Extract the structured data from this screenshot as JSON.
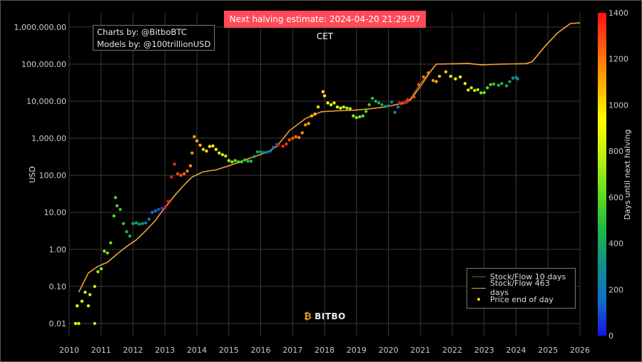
{
  "banner": "Next halving estimate: 2024-04-20 21:29:07 CET",
  "credits": {
    "line1": "Charts by: @BitboBTC",
    "line2": "Models by: @100trillionUSD"
  },
  "logo_text": "BITBO",
  "colors": {
    "background": "#000000",
    "grid": "#3a3a3a",
    "sf10": "#8a5a1e",
    "sf463": "#f0a030",
    "price_dot": "#ffd400",
    "banner": "#ff4a5a"
  },
  "colorbar": {
    "label": "Days until next halving",
    "ticks": [
      0,
      200,
      400,
      600,
      800,
      1000,
      1200,
      1400
    ],
    "range": [
      0,
      1400
    ],
    "stops": [
      "#1a10e8",
      "#1070c8",
      "#109088",
      "#22b840",
      "#60e020",
      "#c0f010",
      "#ffff00",
      "#ffb000",
      "#ff6010",
      "#ff1010"
    ]
  },
  "chart_data": {
    "type": "scatter",
    "title": "",
    "ylabel": "USD",
    "xlabel": "",
    "yscale": "log",
    "xlim": [
      2010,
      2026
    ],
    "ylim": [
      0.01,
      1000000
    ],
    "x_ticks": [
      2010,
      2011,
      2012,
      2013,
      2014,
      2015,
      2016,
      2017,
      2018,
      2019,
      2020,
      2021,
      2022,
      2023,
      2024,
      2025,
      2026
    ],
    "y_ticks": [
      {
        "value": 0.01,
        "label": "0.01"
      },
      {
        "value": 0.1,
        "label": "0.10"
      },
      {
        "value": 1,
        "label": "1.00"
      },
      {
        "value": 10,
        "label": "10.00"
      },
      {
        "value": 100,
        "label": "100.00"
      },
      {
        "value": 1000,
        "label": "1,000.00"
      },
      {
        "value": 10000,
        "label": "10,000.00"
      },
      {
        "value": 100000,
        "label": "100,000.00"
      },
      {
        "value": 1000000,
        "label": "1,000,000.00"
      }
    ],
    "grid": true,
    "legend_position": "bottom-right",
    "legend": [
      "Stock/Flow 10 days",
      "Stock/Flow 463 days",
      "Price end of day"
    ],
    "series": [
      {
        "name": "Stock/Flow 10 days",
        "kind": "line",
        "points": [
          [
            2020.35,
            8000
          ],
          [
            2020.6,
            9000
          ],
          [
            2021.0,
            30000
          ],
          [
            2021.5,
            100000
          ],
          [
            2022.0,
            102000
          ],
          [
            2022.5,
            104000
          ],
          [
            2022.9,
            95000
          ],
          [
            2023.5,
            100000
          ],
          [
            2024.3,
            103000
          ],
          [
            2024.5,
            115000
          ],
          [
            2024.9,
            300000
          ],
          [
            2025.3,
            700000
          ],
          [
            2025.7,
            1250000
          ],
          [
            2026.0,
            1300000
          ]
        ]
      },
      {
        "name": "Stock/Flow 463 days",
        "kind": "line",
        "points": [
          [
            2010.3,
            0.07
          ],
          [
            2010.6,
            0.23
          ],
          [
            2010.9,
            0.35
          ],
          [
            2011.2,
            0.45
          ],
          [
            2011.5,
            0.75
          ],
          [
            2011.8,
            1.2
          ],
          [
            2012.1,
            1.8
          ],
          [
            2012.4,
            3.2
          ],
          [
            2012.7,
            6.0
          ],
          [
            2012.9,
            10.5
          ],
          [
            2013.3,
            28
          ],
          [
            2013.6,
            55
          ],
          [
            2013.85,
            90
          ],
          [
            2014.2,
            125
          ],
          [
            2014.6,
            140
          ],
          [
            2015.0,
            180
          ],
          [
            2015.4,
            240
          ],
          [
            2015.8,
            320
          ],
          [
            2016.2,
            420
          ],
          [
            2016.5,
            600
          ],
          [
            2016.9,
            1600
          ],
          [
            2017.4,
            3400
          ],
          [
            2017.9,
            5200
          ],
          [
            2018.4,
            5500
          ],
          [
            2018.9,
            5700
          ],
          [
            2019.4,
            6200
          ],
          [
            2019.9,
            7000
          ],
          [
            2020.35,
            8500
          ],
          [
            2020.7,
            11000
          ],
          [
            2021.0,
            25000
          ],
          [
            2021.3,
            60000
          ],
          [
            2021.5,
            100000
          ],
          [
            2022.0,
            102000
          ],
          [
            2022.5,
            104000
          ],
          [
            2022.9,
            96000
          ],
          [
            2023.5,
            100000
          ],
          [
            2024.3,
            103000
          ],
          [
            2024.5,
            115000
          ],
          [
            2024.9,
            300000
          ],
          [
            2025.3,
            700000
          ],
          [
            2025.7,
            1250000
          ],
          [
            2026.0,
            1300000
          ]
        ]
      },
      {
        "name": "Price end of day",
        "kind": "scatter",
        "colored_by": "days_until_next_halving",
        "points": [
          [
            2010.2,
            0.01,
            900
          ],
          [
            2010.3,
            0.01,
            860
          ],
          [
            2010.8,
            0.01,
            750
          ],
          [
            2010.25,
            0.03,
            880
          ],
          [
            2010.6,
            0.03,
            800
          ],
          [
            2010.4,
            0.04,
            850
          ],
          [
            2010.5,
            0.07,
            830
          ],
          [
            2010.65,
            0.06,
            810
          ],
          [
            2010.8,
            0.1,
            760
          ],
          [
            2010.9,
            0.25,
            730
          ],
          [
            2011.0,
            0.3,
            700
          ],
          [
            2011.1,
            0.9,
            670
          ],
          [
            2011.2,
            0.8,
            650
          ],
          [
            2011.3,
            1.5,
            620
          ],
          [
            2011.4,
            8,
            590
          ],
          [
            2011.45,
            25,
            570
          ],
          [
            2011.5,
            15,
            560
          ],
          [
            2011.6,
            12,
            520
          ],
          [
            2011.7,
            5,
            500
          ],
          [
            2011.8,
            3,
            460
          ],
          [
            2011.9,
            2.3,
            440
          ],
          [
            2012.0,
            5,
            400
          ],
          [
            2012.1,
            5.2,
            380
          ],
          [
            2012.2,
            4.8,
            340
          ],
          [
            2012.3,
            5,
            300
          ],
          [
            2012.4,
            5.2,
            260
          ],
          [
            2012.5,
            6.5,
            220
          ],
          [
            2012.6,
            10,
            180
          ],
          [
            2012.7,
            11,
            140
          ],
          [
            2012.8,
            12,
            100
          ],
          [
            2012.9,
            13,
            60
          ],
          [
            2013.0,
            13.5,
            1450
          ],
          [
            2013.1,
            20,
            1420
          ],
          [
            2013.2,
            90,
            1380
          ],
          [
            2013.3,
            200,
            1340
          ],
          [
            2013.4,
            110,
            1300
          ],
          [
            2013.5,
            100,
            1270
          ],
          [
            2013.6,
            110,
            1230
          ],
          [
            2013.7,
            130,
            1200
          ],
          [
            2013.8,
            180,
            1160
          ],
          [
            2013.85,
            400,
            1140
          ],
          [
            2013.92,
            1100,
            1120
          ],
          [
            2014.0,
            850,
            1090
          ],
          [
            2014.1,
            650,
            1060
          ],
          [
            2014.2,
            500,
            1020
          ],
          [
            2014.3,
            450,
            990
          ],
          [
            2014.4,
            600,
            960
          ],
          [
            2014.5,
            620,
            920
          ],
          [
            2014.6,
            500,
            880
          ],
          [
            2014.7,
            400,
            840
          ],
          [
            2014.8,
            360,
            800
          ],
          [
            2014.9,
            330,
            760
          ],
          [
            2015.0,
            250,
            720
          ],
          [
            2015.1,
            230,
            680
          ],
          [
            2015.2,
            250,
            640
          ],
          [
            2015.3,
            230,
            600
          ],
          [
            2015.4,
            230,
            560
          ],
          [
            2015.5,
            260,
            520
          ],
          [
            2015.6,
            240,
            480
          ],
          [
            2015.7,
            240,
            440
          ],
          [
            2015.8,
            320,
            400
          ],
          [
            2015.9,
            430,
            360
          ],
          [
            2016.0,
            430,
            320
          ],
          [
            2016.1,
            410,
            280
          ],
          [
            2016.2,
            420,
            240
          ],
          [
            2016.3,
            450,
            200
          ],
          [
            2016.4,
            570,
            160
          ],
          [
            2016.5,
            680,
            110
          ],
          [
            2016.55,
            660,
            1400
          ],
          [
            2016.7,
            610,
            1350
          ],
          [
            2016.8,
            700,
            1320
          ],
          [
            2016.9,
            900,
            1290
          ],
          [
            2017.0,
            1000,
            1260
          ],
          [
            2017.1,
            1100,
            1230
          ],
          [
            2017.2,
            1050,
            1200
          ],
          [
            2017.3,
            1400,
            1170
          ],
          [
            2017.4,
            2300,
            1140
          ],
          [
            2017.5,
            2500,
            1110
          ],
          [
            2017.6,
            4000,
            1080
          ],
          [
            2017.7,
            4500,
            1050
          ],
          [
            2017.8,
            7000,
            1020
          ],
          [
            2017.95,
            18000,
            990
          ],
          [
            2018.0,
            14000,
            970
          ],
          [
            2018.1,
            9000,
            940
          ],
          [
            2018.2,
            8000,
            910
          ],
          [
            2018.3,
            9000,
            880
          ],
          [
            2018.4,
            7000,
            850
          ],
          [
            2018.5,
            6500,
            820
          ],
          [
            2018.6,
            7000,
            790
          ],
          [
            2018.7,
            6500,
            760
          ],
          [
            2018.8,
            6300,
            730
          ],
          [
            2018.9,
            4000,
            700
          ],
          [
            2019.0,
            3600,
            670
          ],
          [
            2019.1,
            3800,
            640
          ],
          [
            2019.2,
            4000,
            610
          ],
          [
            2019.3,
            5300,
            580
          ],
          [
            2019.4,
            8000,
            540
          ],
          [
            2019.5,
            12000,
            500
          ],
          [
            2019.6,
            10000,
            460
          ],
          [
            2019.7,
            9000,
            420
          ],
          [
            2019.8,
            8000,
            380
          ],
          [
            2019.9,
            7200,
            340
          ],
          [
            2020.0,
            7500,
            300
          ],
          [
            2020.1,
            9500,
            260
          ],
          [
            2020.2,
            5000,
            220
          ],
          [
            2020.3,
            7000,
            180
          ],
          [
            2020.35,
            9000,
            1450
          ],
          [
            2020.5,
            9500,
            1400
          ],
          [
            2020.6,
            11000,
            1350
          ],
          [
            2020.8,
            13000,
            1300
          ],
          [
            2020.95,
            28000,
            1260
          ],
          [
            2021.1,
            45000,
            1220
          ],
          [
            2021.25,
            58000,
            1180
          ],
          [
            2021.4,
            36000,
            1140
          ],
          [
            2021.5,
            34000,
            1110
          ],
          [
            2021.6,
            47000,
            1080
          ],
          [
            2021.8,
            62000,
            1040
          ],
          [
            2021.95,
            47000,
            1000
          ],
          [
            2022.1,
            40000,
            960
          ],
          [
            2022.25,
            45000,
            920
          ],
          [
            2022.4,
            30000,
            880
          ],
          [
            2022.5,
            20000,
            840
          ],
          [
            2022.6,
            23000,
            800
          ],
          [
            2022.7,
            19500,
            760
          ],
          [
            2022.8,
            20500,
            720
          ],
          [
            2022.9,
            16800,
            680
          ],
          [
            2023.0,
            17000,
            640
          ],
          [
            2023.1,
            23000,
            600
          ],
          [
            2023.2,
            28000,
            560
          ],
          [
            2023.3,
            29000,
            520
          ],
          [
            2023.45,
            27000,
            480
          ],
          [
            2023.55,
            30000,
            440
          ],
          [
            2023.7,
            26000,
            400
          ],
          [
            2023.8,
            34000,
            360
          ],
          [
            2023.9,
            42000,
            320
          ],
          [
            2024.0,
            44000,
            280
          ],
          [
            2024.05,
            40000,
            240
          ]
        ]
      }
    ]
  }
}
